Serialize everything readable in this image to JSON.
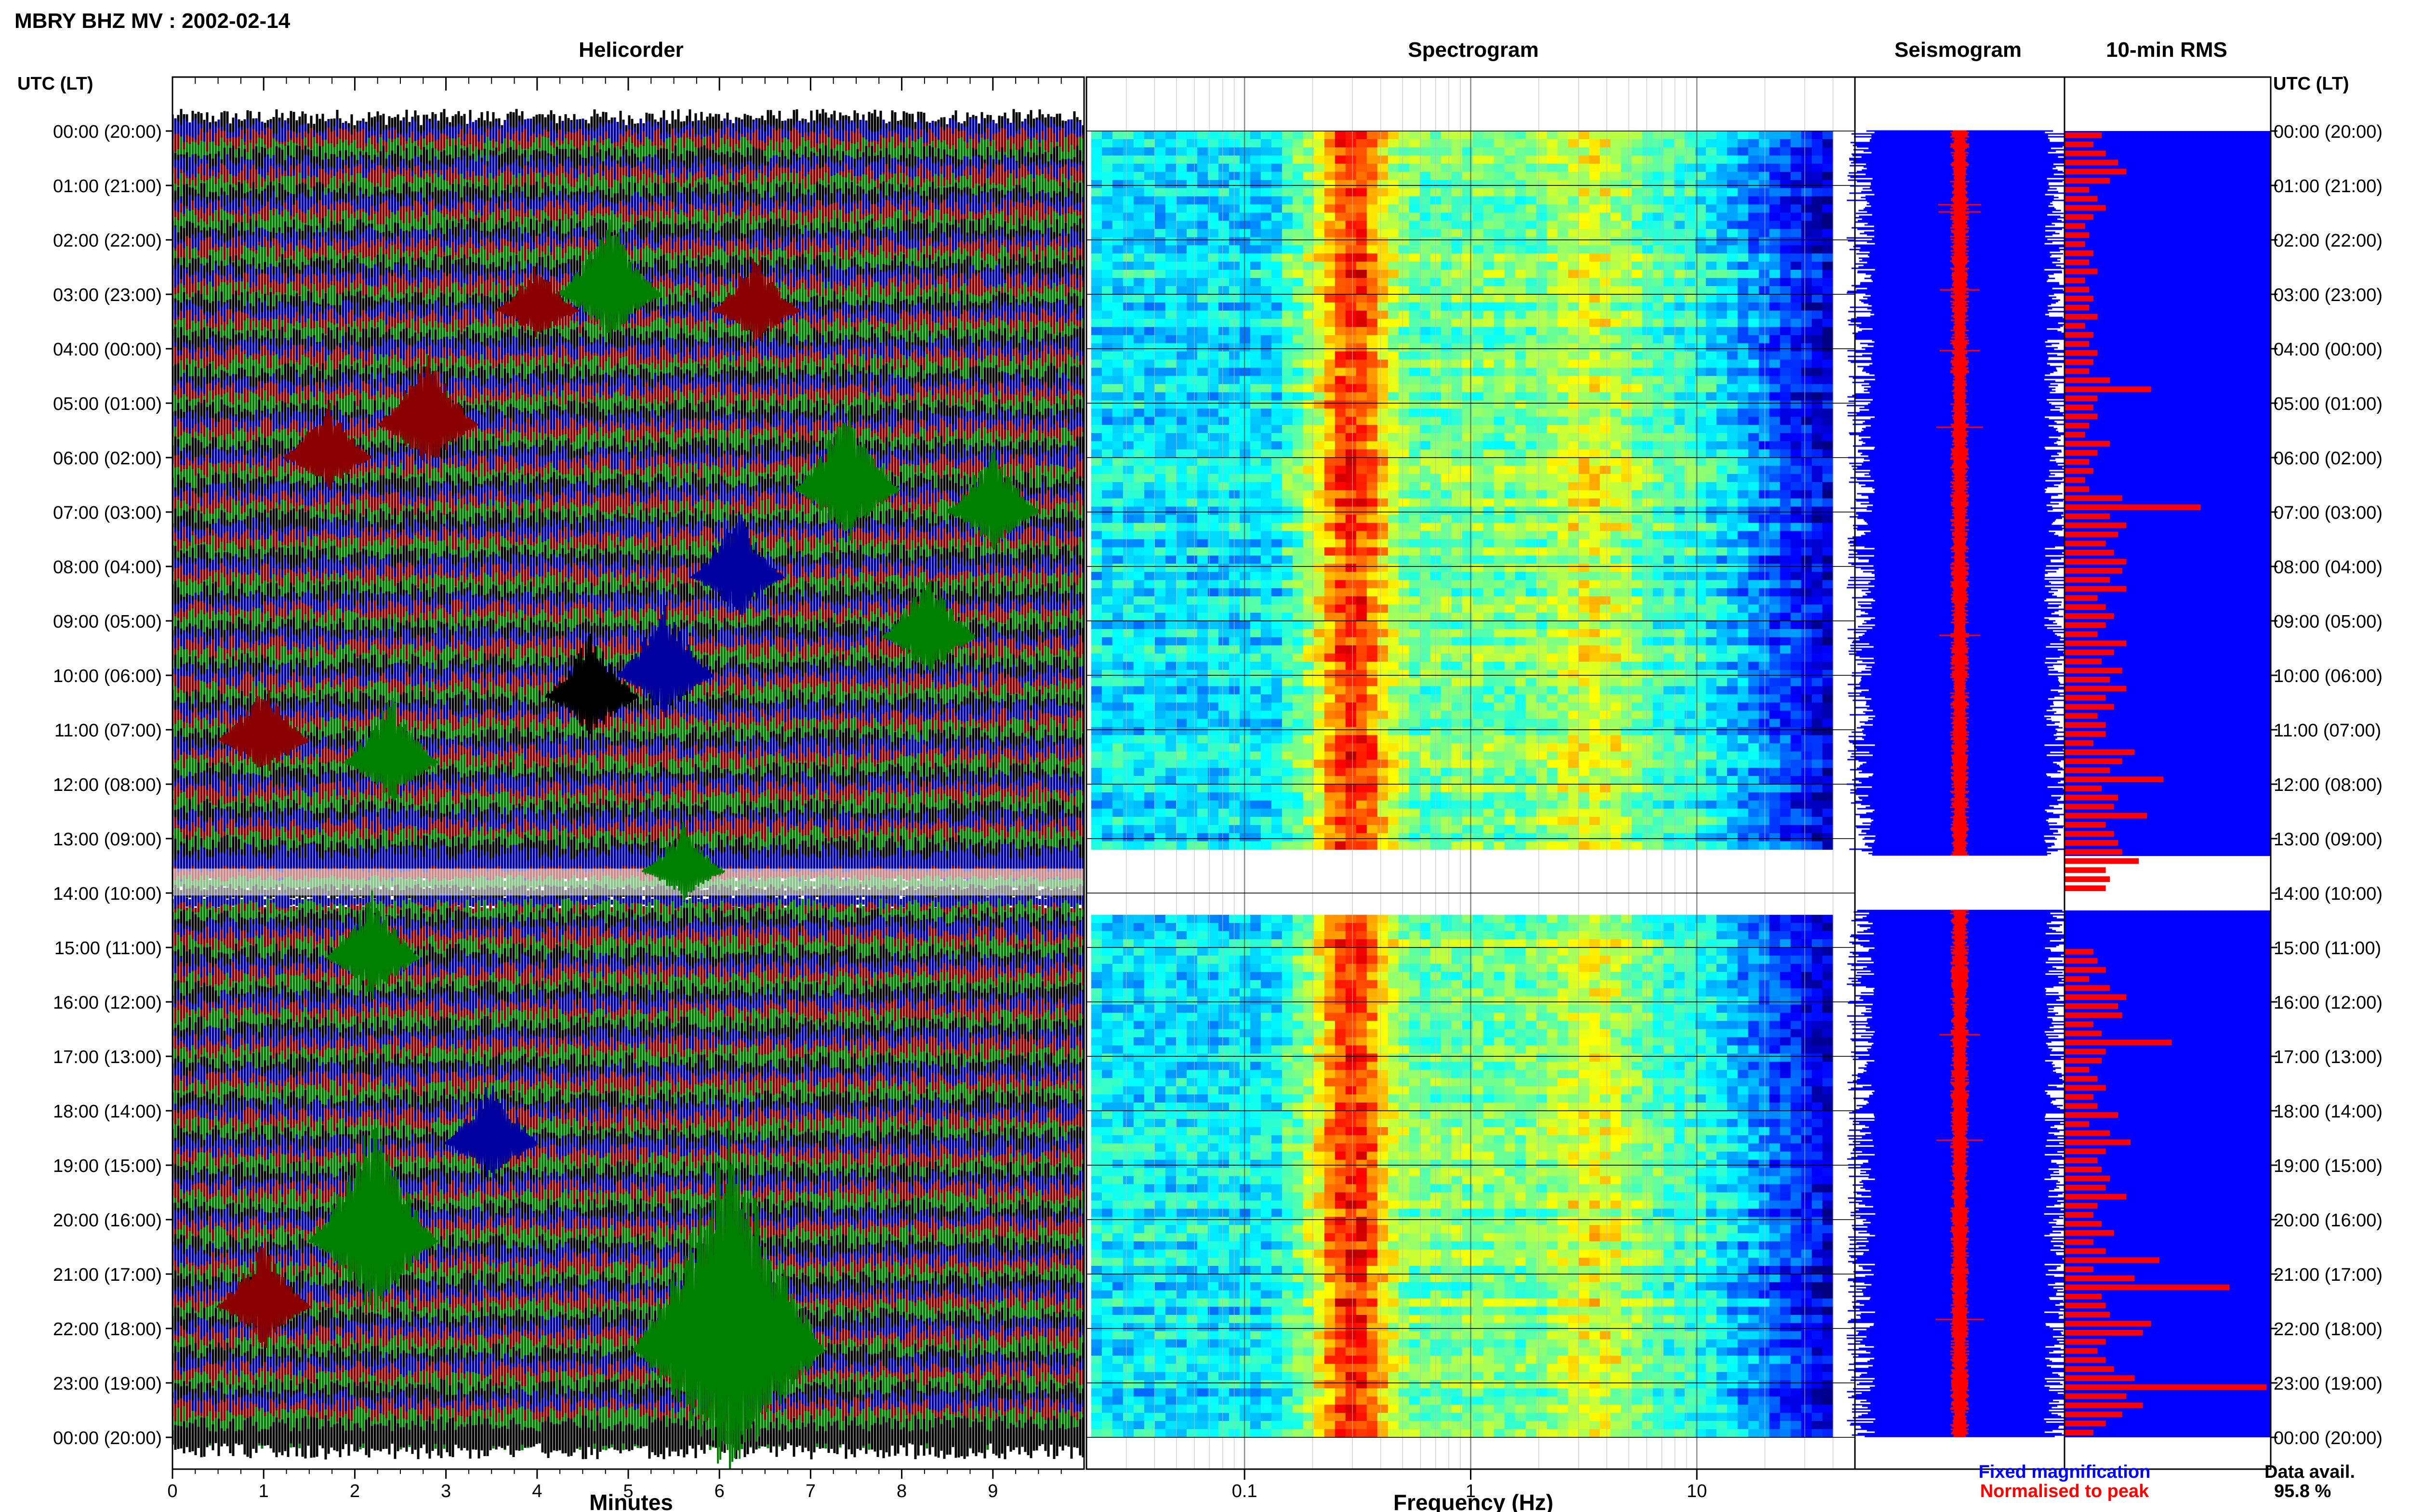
{
  "header": {
    "title": "MBRY BHZ MV : 2002-02-14"
  },
  "panels": {
    "helicorder": "Helicorder",
    "spectrogram": "Spectrogram",
    "seismogram": "Seismogram",
    "rms": "10-min RMS"
  },
  "axes": {
    "left_label": "UTC (LT)",
    "right_label": "UTC (LT)",
    "helicorder_xlabel": "Minutes",
    "spectrogram_xlabel": "Frequency (Hz)"
  },
  "legend": {
    "fixed": "Fixed magnification",
    "normalised": "Normalised to peak",
    "fixed_color": "#0000ff",
    "normalised_color": "#ff0000"
  },
  "availability": {
    "label": "Data avail.",
    "value": "95.8 %"
  },
  "chart_data": [
    {
      "type": "line",
      "name": "helicorder",
      "title": "Helicorder",
      "xlabel": "Minutes",
      "x_ticks": [
        "0",
        "1",
        "2",
        "3",
        "4",
        "5",
        "6",
        "7",
        "8",
        "9"
      ],
      "xlim": [
        0,
        10
      ],
      "time_labels": [
        "00:00 (20:00)",
        "01:00 (21:00)",
        "02:00 (22:00)",
        "03:00 (23:00)",
        "04:00 (00:00)",
        "05:00 (01:00)",
        "06:00 (02:00)",
        "07:00 (03:00)",
        "08:00 (04:00)",
        "09:00 (05:00)",
        "10:00 (06:00)",
        "11:00 (07:00)",
        "12:00 (08:00)",
        "13:00 (09:00)",
        "14:00 (10:00)",
        "15:00 (11:00)",
        "16:00 (12:00)",
        "17:00 (13:00)",
        "18:00 (14:00)",
        "19:00 (15:00)",
        "20:00 (16:00)",
        "21:00 (17:00)",
        "22:00 (18:00)",
        "23:00 (19:00)",
        "00:00 (20:00)"
      ],
      "trace_colors": [
        "#000000",
        "#0000a0",
        "#8b0000",
        "#008000"
      ],
      "traces_per_hour": 6,
      "events": [
        {
          "hour": 3.0,
          "minute": 4.8,
          "height": 1.7,
          "color": "#008000"
        },
        {
          "hour": 3.3,
          "minute": 4.0,
          "height": 1.0,
          "color": "#8b0000"
        },
        {
          "hour": 3.3,
          "minute": 6.4,
          "height": 1.2,
          "color": "#8b0000"
        },
        {
          "hour": 5.4,
          "minute": 2.8,
          "height": 1.6,
          "color": "#8b0000"
        },
        {
          "hour": 6.0,
          "minute": 1.7,
          "height": 1.2,
          "color": "#8b0000"
        },
        {
          "hour": 6.6,
          "minute": 7.4,
          "height": 1.8,
          "color": "#008000"
        },
        {
          "hour": 7.0,
          "minute": 9.0,
          "height": 1.4,
          "color": "#008000"
        },
        {
          "hour": 8.2,
          "minute": 6.2,
          "height": 1.4,
          "color": "#0000a0"
        },
        {
          "hour": 9.3,
          "minute": 8.3,
          "height": 1.4,
          "color": "#008000"
        },
        {
          "hour": 10.0,
          "minute": 5.4,
          "height": 1.5,
          "color": "#0000a0"
        },
        {
          "hour": 10.4,
          "minute": 4.6,
          "height": 1.4,
          "color": "#000000"
        },
        {
          "hour": 11.2,
          "minute": 1.0,
          "height": 1.3,
          "color": "#8b0000"
        },
        {
          "hour": 11.6,
          "minute": 2.4,
          "height": 1.4,
          "color": "#008000"
        },
        {
          "hour": 15.2,
          "minute": 2.2,
          "height": 1.4,
          "color": "#008000"
        },
        {
          "hour": 18.6,
          "minute": 3.5,
          "height": 1.4,
          "color": "#0000a0"
        },
        {
          "hour": 20.4,
          "minute": 2.2,
          "height": 2.6,
          "color": "#008000"
        },
        {
          "hour": 21.6,
          "minute": 1.0,
          "height": 1.4,
          "color": "#8b0000"
        },
        {
          "hour": 22.4,
          "minute": 6.1,
          "height": 4.8,
          "color": "#008000"
        },
        {
          "hour": 13.6,
          "minute": 5.6,
          "height": 1.0,
          "color": "#008000"
        }
      ],
      "gap_hours": [
        13.55,
        14.45
      ]
    },
    {
      "type": "heatmap",
      "name": "spectrogram",
      "title": "Spectrogram",
      "xlabel": "Frequency (Hz)",
      "x_scale": "log",
      "xlim": [
        0.02,
        50
      ],
      "x_ticks": [
        "0.1",
        "1",
        "10"
      ],
      "x_tick_values": [
        0.1,
        1,
        10
      ],
      "data_freq_max": 40,
      "gap_hours": [
        13.32,
        14.32
      ],
      "colormap": "jet",
      "peak_bands_hz": [
        0.25,
        0.5,
        3.5
      ]
    },
    {
      "type": "line",
      "name": "seismogram",
      "title": "Seismogram",
      "series": [
        {
          "name": "Fixed magnification",
          "color": "#0000ff"
        },
        {
          "name": "Normalised to peak",
          "color": "#ff0000"
        }
      ],
      "gap_hours": [
        13.32,
        14.32
      ]
    },
    {
      "type": "bar",
      "name": "rms",
      "title": "10-min RMS",
      "interval_minutes": 10,
      "gap_hours": [
        13.32,
        14.32
      ],
      "red_values": [
        0.18,
        0.14,
        0.2,
        0.26,
        0.3,
        0.22,
        0.12,
        0.16,
        0.2,
        0.14,
        0.1,
        0.12,
        0.1,
        0.14,
        0.12,
        0.16,
        0.1,
        0.12,
        0.14,
        0.12,
        0.16,
        0.1,
        0.14,
        0.12,
        0.16,
        0.14,
        0.12,
        0.22,
        0.42,
        0.16,
        0.14,
        0.16,
        0.12,
        0.1,
        0.22,
        0.16,
        0.12,
        0.14,
        0.1,
        0.12,
        0.28,
        0.66,
        0.22,
        0.3,
        0.26,
        0.2,
        0.24,
        0.3,
        0.28,
        0.22,
        0.3,
        0.16,
        0.2,
        0.24,
        0.2,
        0.16,
        0.3,
        0.24,
        0.18,
        0.28,
        0.22,
        0.3,
        0.2,
        0.24,
        0.16,
        0.2,
        0.2,
        0.14,
        0.34,
        0.28,
        0.22,
        0.48,
        0.18,
        0.26,
        0.24,
        0.4,
        0.2,
        0.24,
        0.26,
        0.28,
        0.36,
        0.2,
        0.22,
        0.2,
        0,
        0,
        0,
        0,
        0,
        0,
        0.14,
        0.16,
        0.2,
        0.12,
        0.22,
        0.3,
        0.26,
        0.28,
        0.14,
        0.18,
        0.52,
        0.2,
        0.18,
        0.12,
        0.16,
        0.2,
        0.14,
        0.16,
        0.26,
        0.12,
        0.22,
        0.32,
        0.2,
        0.16,
        0.18,
        0.22,
        0.2,
        0.3,
        0.16,
        0.14,
        0.18,
        0.24,
        0.14,
        0.2,
        0.46,
        0.14,
        0.34,
        0.8,
        0.18,
        0.2,
        0.22,
        0.42,
        0.38,
        0.2,
        0.16,
        0.2,
        0.24,
        0.34,
        0.98,
        0.3,
        0.38,
        0.28,
        0.2,
        0.14
      ]
    }
  ]
}
